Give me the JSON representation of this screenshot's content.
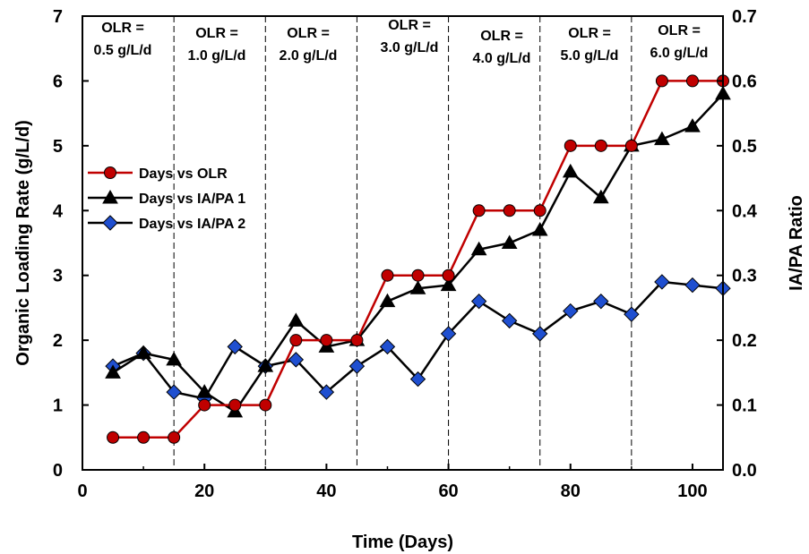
{
  "chart_data": {
    "type": "line",
    "xlabel": "Time (Days)",
    "ylabel": "Organic Loading Rate (g/L/d)",
    "y2label": "IA/PA Ratio",
    "xlim": [
      0,
      105
    ],
    "ylim": [
      0,
      7
    ],
    "y2lim": [
      0.0,
      0.7
    ],
    "x_ticks": [
      0,
      20,
      40,
      60,
      80,
      100
    ],
    "y_ticks": [
      0,
      1,
      2,
      3,
      4,
      5,
      6,
      7
    ],
    "y2_ticks": [
      "0.0",
      "0.1",
      "0.2",
      "0.3",
      "0.4",
      "0.5",
      "0.6",
      "0.7"
    ],
    "grid": false,
    "legend_position": "left",
    "phase_boundaries": [
      15,
      30,
      45,
      60,
      75,
      90
    ],
    "phase_labels": [
      {
        "line1": "OLR =",
        "line2": "0.5 g/L/d"
      },
      {
        "line1": "OLR =",
        "line2": "1.0 g/L/d"
      },
      {
        "line1": "OLR =",
        "line2": "2.0 g/L/d"
      },
      {
        "line1": "OLR =",
        "line2": "3.0 g/L/d"
      },
      {
        "line1": "OLR =",
        "line2": "4.0 g/L/d"
      },
      {
        "line1": "OLR =",
        "line2": "5.0 g/L/d"
      },
      {
        "line1": "OLR =",
        "line2": "6.0 g/L/d"
      }
    ],
    "series": [
      {
        "name": "Days  vs OLR",
        "axis": "left",
        "marker": "circle",
        "color": "#c00000",
        "fill": "#c00000",
        "x": [
          5,
          10,
          15,
          20,
          25,
          30,
          35,
          40,
          45,
          50,
          55,
          60,
          65,
          70,
          75,
          80,
          85,
          90,
          95,
          100,
          105
        ],
        "y": [
          0.5,
          0.5,
          0.5,
          1.0,
          1.0,
          1.0,
          2.0,
          2.0,
          2.0,
          3.0,
          3.0,
          3.0,
          4.0,
          4.0,
          4.0,
          5.0,
          5.0,
          5.0,
          6.0,
          6.0,
          6.0
        ]
      },
      {
        "name": "Days  vs IA/PA 1",
        "axis": "right",
        "marker": "triangle",
        "color": "#000000",
        "fill": "#000000",
        "x": [
          5,
          10,
          15,
          20,
          25,
          30,
          35,
          40,
          45,
          50,
          55,
          60,
          65,
          70,
          75,
          80,
          85,
          90,
          95,
          100,
          105
        ],
        "y": [
          0.15,
          0.18,
          0.17,
          0.12,
          0.09,
          0.16,
          0.23,
          0.19,
          0.2,
          0.26,
          0.28,
          0.285,
          0.34,
          0.35,
          0.37,
          0.46,
          0.42,
          0.5,
          0.51,
          0.53,
          0.58
        ]
      },
      {
        "name": "Days  vs IA/PA 2",
        "axis": "right",
        "marker": "diamond",
        "color": "#000000",
        "fill": "#1f4fd0",
        "x": [
          5,
          10,
          15,
          20,
          25,
          30,
          35,
          40,
          45,
          50,
          55,
          60,
          65,
          70,
          75,
          80,
          85,
          90,
          95,
          100,
          105
        ],
        "y": [
          0.16,
          0.18,
          0.12,
          0.11,
          0.19,
          0.16,
          0.17,
          0.12,
          0.16,
          0.19,
          0.14,
          0.21,
          0.26,
          0.23,
          0.21,
          0.245,
          0.26,
          0.24,
          0.29,
          0.285,
          0.28
        ]
      }
    ]
  }
}
